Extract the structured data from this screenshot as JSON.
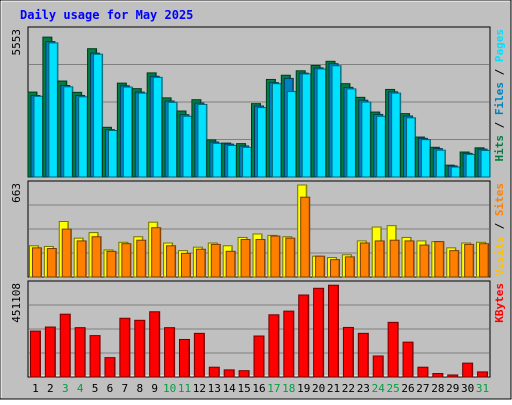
{
  "chart_data": {
    "type": "bar",
    "title": "Daily usage for May 2025",
    "categories": [
      "1",
      "2",
      "3",
      "4",
      "5",
      "6",
      "7",
      "8",
      "9",
      "10",
      "11",
      "12",
      "13",
      "14",
      "15",
      "16",
      "17",
      "18",
      "19",
      "20",
      "21",
      "22",
      "23",
      "24",
      "25",
      "26",
      "27",
      "28",
      "29",
      "30",
      "31"
    ],
    "weekend_days": [
      3,
      4,
      10,
      11,
      17,
      18,
      24,
      25,
      31
    ],
    "panels": [
      {
        "id": "top",
        "max_label": "5553",
        "ylim": [
          0,
          5553
        ],
        "legend": [
          {
            "text": "Hits",
            "color": "#008040"
          },
          {
            "text": " / ",
            "color": "#000000"
          },
          {
            "text": "Files",
            "color": "#0080C0"
          },
          {
            "text": " / ",
            "color": "#000000"
          },
          {
            "text": "Pages",
            "color": "#00E0FF"
          }
        ],
        "series": [
          {
            "name": "Hits",
            "color": "#008040",
            "values": [
              3230,
              5320,
              3650,
              3220,
              4880,
              1890,
              3570,
              3360,
              3960,
              3010,
              2510,
              2940,
              1410,
              1290,
              1270,
              2790,
              3710,
              3870,
              4040,
              4240,
              4400,
              3550,
              3030,
              2470,
              3330,
              2410,
              1520,
              1130,
              450,
              950,
              1110
            ]
          },
          {
            "name": "Files",
            "color": "#0080C0",
            "values": [
              3100,
              5150,
              3480,
              3100,
              4710,
              1800,
              3470,
              3230,
              3830,
              2890,
              2370,
              2810,
              1330,
              1250,
              1180,
              2700,
              3590,
              3750,
              3950,
              4150,
              4310,
              3410,
              2920,
              2380,
              3240,
              2320,
              1470,
              1080,
              420,
              900,
              1060
            ]
          },
          {
            "name": "Pages",
            "color": "#00E0FF",
            "values": [
              3070,
              5100,
              3430,
              3050,
              4670,
              1770,
              3420,
              3190,
              3790,
              2840,
              2310,
              2760,
              1280,
              1200,
              1130,
              2640,
              3550,
              3250,
              3920,
              4110,
              4230,
              3350,
              2850,
              2310,
              3190,
              2250,
              1420,
              1020,
              380,
              860,
              1010
            ]
          }
        ]
      },
      {
        "id": "mid",
        "max_label": "663",
        "ylim": [
          0,
          663
        ],
        "legend": [
          {
            "text": "Visits",
            "color": "#FFC000"
          },
          {
            "text": " / ",
            "color": "#000000"
          },
          {
            "text": "Sites",
            "color": "#FF8000"
          }
        ],
        "series": [
          {
            "name": "Visits",
            "color": "#FFFF00",
            "values": [
              225,
              220,
              400,
              280,
              320,
              195,
              250,
              290,
              395,
              245,
              190,
              215,
              245,
              225,
              285,
              310,
              300,
              290,
              663,
              150,
              140,
              160,
              260,
              360,
              370,
              285,
              260,
              255,
              210,
              245,
              250
            ]
          },
          {
            "name": "Sites",
            "color": "#FF8000",
            "values": [
              210,
              205,
              345,
              260,
              290,
              185,
              240,
              265,
              355,
              225,
              170,
              200,
              235,
              185,
              270,
              270,
              295,
              280,
              575,
              150,
              125,
              145,
              245,
              260,
              265,
              260,
              230,
              255,
              190,
              235,
              240
            ]
          }
        ]
      },
      {
        "id": "bot",
        "max_label": "451108",
        "ylim": [
          0,
          451108
        ],
        "legend": [
          {
            "text": "KBytes",
            "color": "#FF0000"
          }
        ],
        "series": [
          {
            "name": "KBytes",
            "color": "#FF0000",
            "values": [
              225000,
              245000,
              308000,
              242000,
              203000,
              95000,
              288000,
              278000,
              320000,
              242000,
              184000,
              214000,
              48000,
              35000,
              31000,
              201000,
              305000,
              323000,
              402000,
              435000,
              450000,
              243000,
              214000,
              103000,
              268000,
              171000,
              48000,
              17000,
              10000,
              68000,
              25000
            ]
          }
        ]
      }
    ]
  }
}
